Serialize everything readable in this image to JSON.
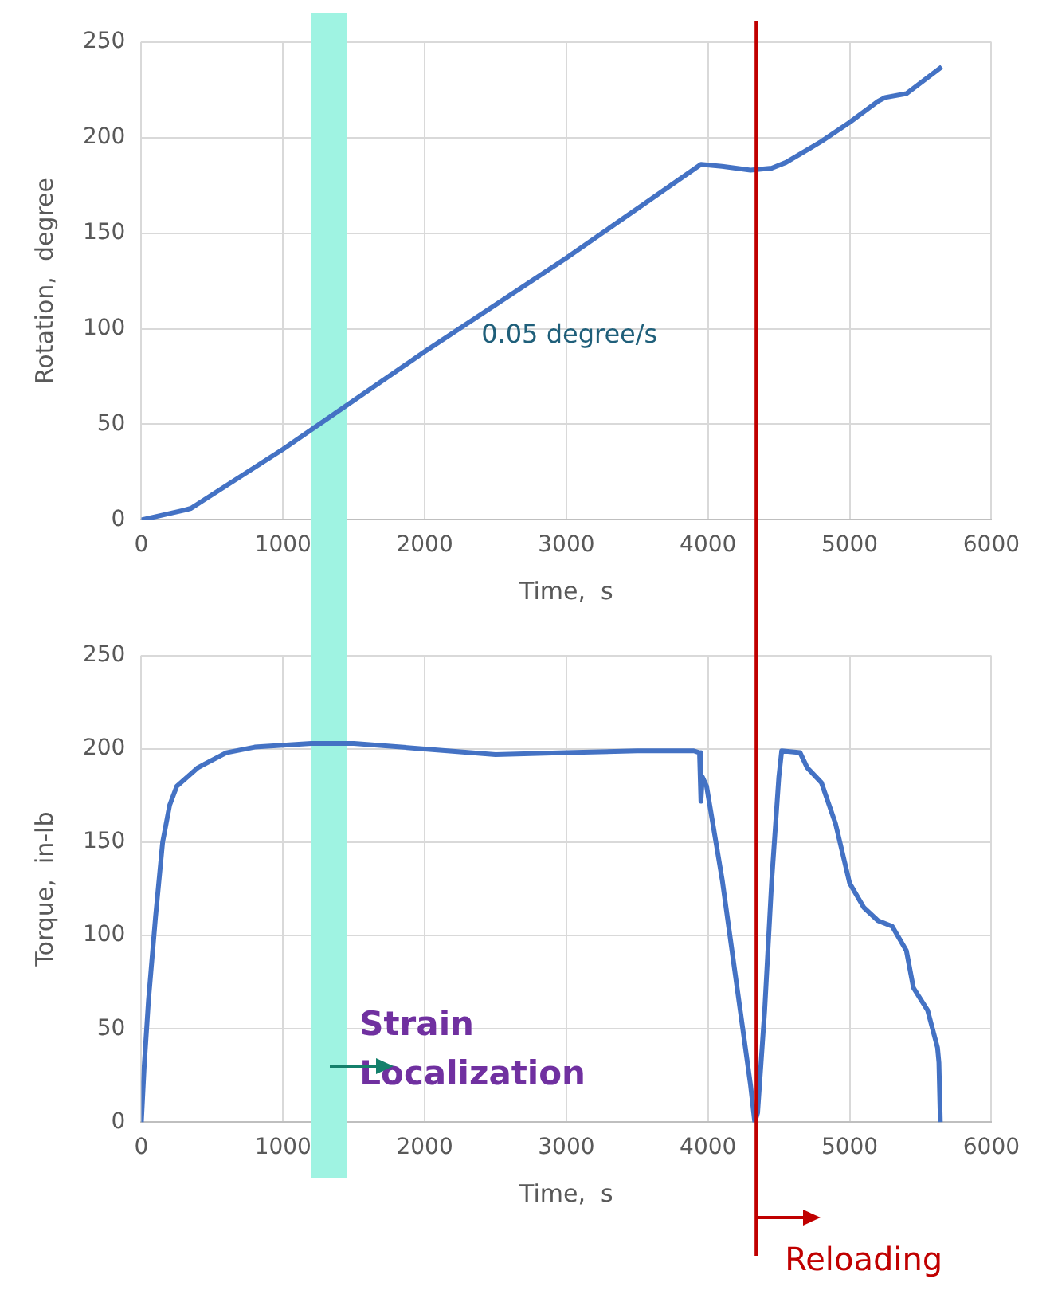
{
  "chart_data": [
    {
      "type": "line",
      "xlabel": "Time,  s",
      "ylabel": "Rotation,  degree",
      "xlim": [
        0,
        6000
      ],
      "xticks": [
        0,
        1000,
        2000,
        3000,
        4000,
        5000,
        6000
      ],
      "ylim": [
        0,
        250
      ],
      "yticks": [
        0,
        50,
        100,
        150,
        200,
        250
      ],
      "grid": true,
      "legend": false,
      "marker": "none",
      "line_style": "solid",
      "series": [
        {
          "color": "#4472c4",
          "x": [
            0,
            300,
            350,
            1000,
            2000,
            3000,
            3950,
            4100,
            4300,
            4450,
            4550,
            4800,
            5000,
            5200,
            5250,
            5400,
            5650
          ],
          "values": [
            0,
            5,
            6,
            37,
            88,
            137,
            186,
            185,
            183,
            184,
            187,
            198,
            208,
            219,
            221,
            223,
            237
          ]
        }
      ],
      "bands": [
        {
          "axis": "x",
          "from": 1200,
          "to": 1450,
          "color": "#9ff3e2"
        }
      ],
      "ref_lines": [
        {
          "axis": "x",
          "value": 4340,
          "color": "#c00000"
        }
      ],
      "annotations": [
        "0.05 degree/s"
      ]
    },
    {
      "type": "line",
      "xlabel": "Time,  s",
      "ylabel": "Torque,  in-lb",
      "xlim": [
        0,
        6000
      ],
      "xticks": [
        0,
        1000,
        2000,
        3000,
        4000,
        5000,
        6000
      ],
      "ylim": [
        0,
        250
      ],
      "yticks": [
        0,
        50,
        100,
        150,
        200,
        250
      ],
      "grid": true,
      "legend": false,
      "marker": "none",
      "line_style": "solid",
      "series": [
        {
          "color": "#4472c4",
          "x": [
            0,
            20,
            50,
            100,
            150,
            200,
            250,
            400,
            600,
            800,
            1000,
            1200,
            1500,
            2000,
            2500,
            3000,
            3500,
            3900,
            3940,
            3950,
            3960,
            3990,
            4100,
            4200,
            4300,
            4330,
            4350,
            4400,
            4450,
            4500,
            4520,
            4650,
            4700,
            4800,
            4900,
            5000,
            5100,
            5200,
            5300,
            5400,
            5450,
            5550,
            5620,
            5630,
            5640
          ],
          "values": [
            0,
            30,
            65,
            110,
            150,
            170,
            180,
            190,
            198,
            201,
            202,
            203,
            203,
            200,
            197,
            198,
            199,
            199,
            198,
            172,
            185,
            180,
            130,
            75,
            20,
            0,
            5,
            60,
            130,
            185,
            199,
            198,
            190,
            182,
            160,
            128,
            115,
            108,
            105,
            92,
            72,
            60,
            40,
            32,
            0
          ]
        }
      ],
      "bands": [
        {
          "axis": "x",
          "from": 1200,
          "to": 1450,
          "color": "#9ff3e2",
          "label": "Strain Localization"
        }
      ],
      "ref_lines": [
        {
          "axis": "x",
          "value": 4340,
          "color": "#c00000",
          "label": "Reloading"
        }
      ]
    }
  ]
}
